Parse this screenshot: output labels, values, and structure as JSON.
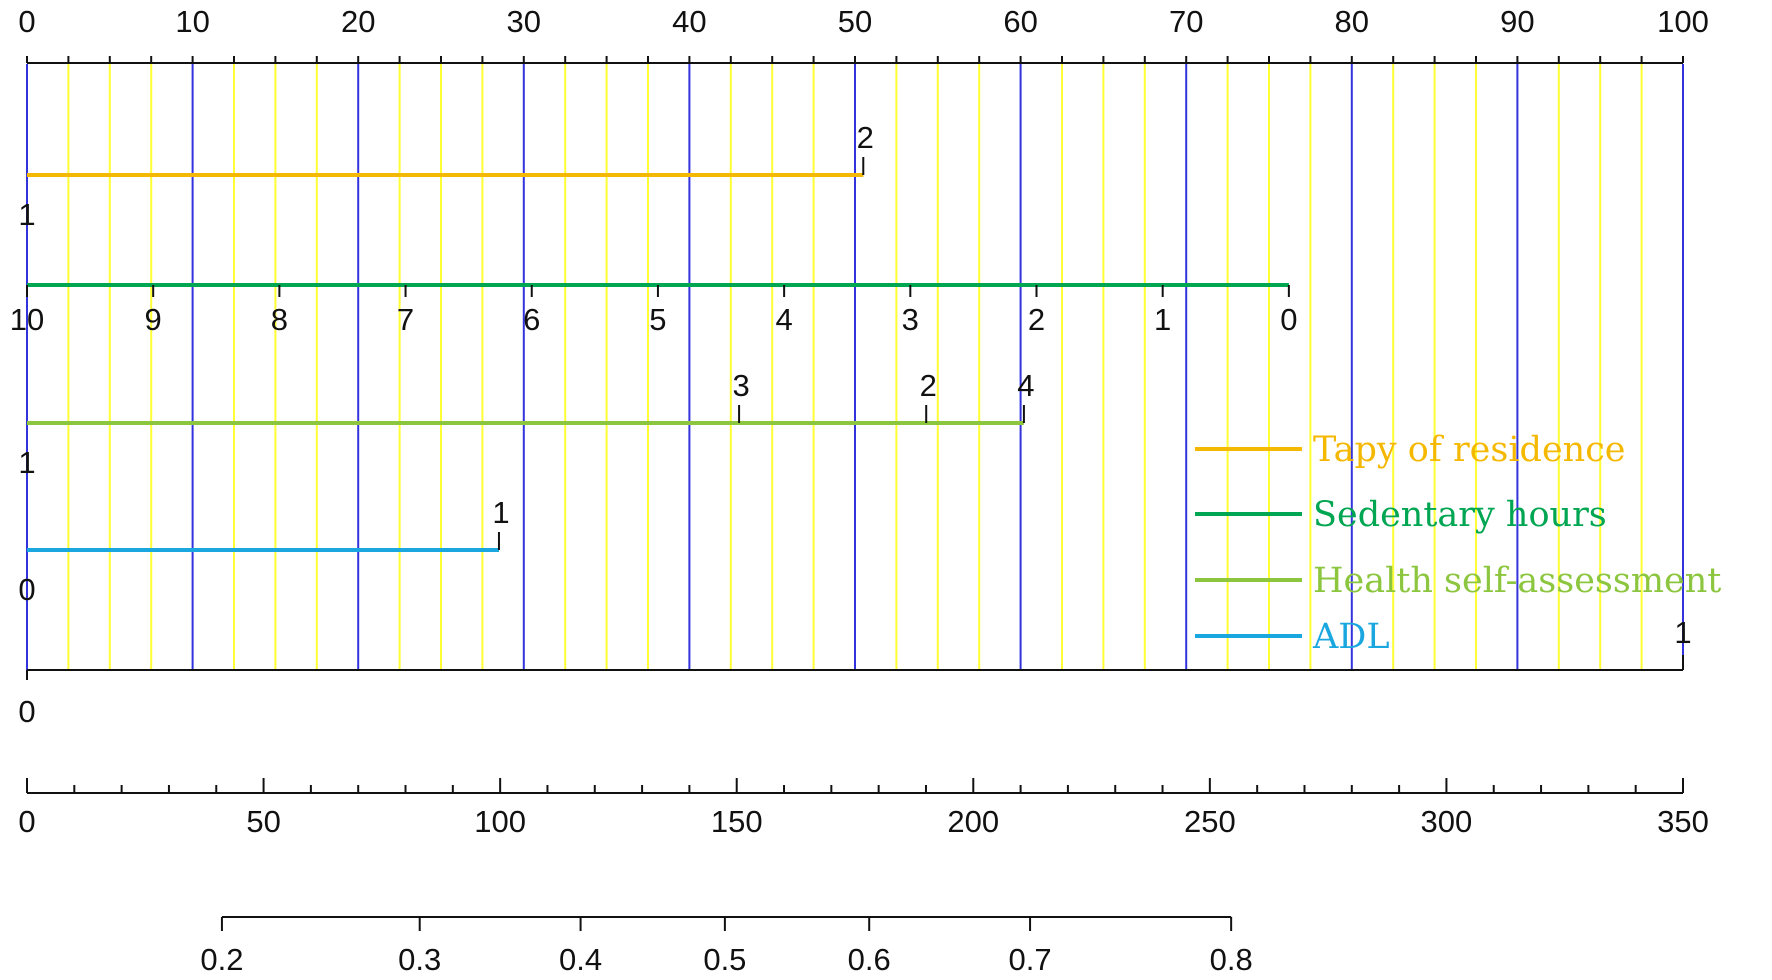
{
  "chart_data": {
    "type": "nomogram",
    "points_axis": {
      "range": [
        0,
        100
      ],
      "labels": [
        "0",
        "10",
        "20",
        "30",
        "40",
        "50",
        "60",
        "70",
        "80",
        "90",
        "100"
      ],
      "major_step": 10,
      "minor_step": 2.5
    },
    "grid": {
      "on": true,
      "major_color": "#3333dd",
      "minor_color": "#ffff33"
    },
    "variables": [
      {
        "key": "residence",
        "color": "#f5b800",
        "span_points": [
          0,
          50.5
        ],
        "tick_labels": [
          {
            "label": "1",
            "points": 0,
            "side": "below"
          },
          {
            "label": "2",
            "points": 50.5,
            "side": "above"
          }
        ]
      },
      {
        "key": "sedentary",
        "color": "#00a651",
        "span_points": [
          0,
          76.2
        ],
        "tick_labels": [
          {
            "label": "10",
            "points": 0,
            "side": "below"
          },
          {
            "label": "9",
            "points": 7.62,
            "side": "below"
          },
          {
            "label": "8",
            "points": 15.24,
            "side": "below"
          },
          {
            "label": "7",
            "points": 22.86,
            "side": "below"
          },
          {
            "label": "6",
            "points": 30.48,
            "side": "below"
          },
          {
            "label": "5",
            "points": 38.1,
            "side": "below"
          },
          {
            "label": "4",
            "points": 45.72,
            "side": "below"
          },
          {
            "label": "3",
            "points": 53.34,
            "side": "below"
          },
          {
            "label": "2",
            "points": 60.96,
            "side": "below"
          },
          {
            "label": "1",
            "points": 68.58,
            "side": "below"
          },
          {
            "label": "0",
            "points": 76.2,
            "side": "below"
          }
        ]
      },
      {
        "key": "health",
        "color": "#8cc63f",
        "span_points": [
          0,
          60.2
        ],
        "tick_labels": [
          {
            "label": "1",
            "points": 0,
            "side": "below"
          },
          {
            "label": "3",
            "points": 43,
            "side": "above"
          },
          {
            "label": "2",
            "points": 54.3,
            "side": "above"
          },
          {
            "label": "4",
            "points": 60.2,
            "side": "above"
          }
        ]
      },
      {
        "key": "adl",
        "color": "#1aa7e0",
        "span_points": [
          0,
          28.5
        ],
        "tick_labels": [
          {
            "label": "0",
            "points": 0,
            "side": "below"
          },
          {
            "label": "1",
            "points": 28.5,
            "side": "above"
          }
        ]
      }
    ],
    "bottom_line": {
      "labels": [
        {
          "label": "0",
          "points": 0
        },
        {
          "label": "1",
          "points": 100
        }
      ]
    },
    "total_points_axis": {
      "range": [
        0,
        350
      ],
      "labels": [
        "0",
        "50",
        "100",
        "150",
        "200",
        "250",
        "300",
        "350"
      ],
      "major_step": 50,
      "minor_step": 10
    },
    "probability_axis": {
      "total_points_at_0_2": 41.2,
      "total_points_at_0_8": 254.5,
      "ticks": [
        {
          "label": "0.2",
          "total": 41.2
        },
        {
          "label": "0.3",
          "total": 83.0
        },
        {
          "label": "0.4",
          "total": 117.0
        },
        {
          "label": "0.5",
          "total": 147.5
        },
        {
          "label": "0.6",
          "total": 178.0
        },
        {
          "label": "0.7",
          "total": 212.0
        },
        {
          "label": "0.8",
          "total": 254.5
        }
      ]
    },
    "legend": {
      "placement": "right",
      "items": [
        {
          "name": "Tapy of residence",
          "color": "#f5b800"
        },
        {
          "name": "Sedentary hours",
          "color": "#00a651"
        },
        {
          "name": "Health self-assessment",
          "color": "#8cc63f"
        },
        {
          "name": "ADL",
          "color": "#1aa7e0"
        }
      ]
    }
  }
}
